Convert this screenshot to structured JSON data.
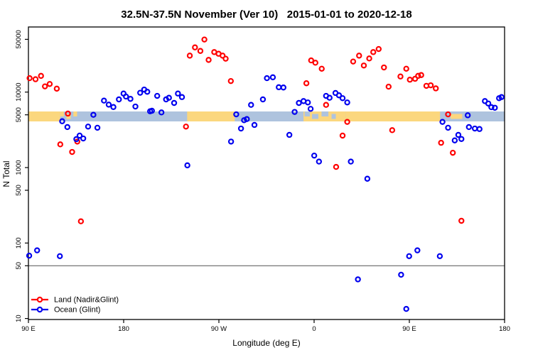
{
  "chart_data": {
    "type": "scatter",
    "title": "32.5N-37.5N November (Ver 10)   2015-01-01 to 2020-12-18",
    "xlabel": "Longitude (deg E)",
    "ylabel": "N Total",
    "x_axis": {
      "span_deg": 450,
      "tick_degs": [
        0,
        90,
        180,
        270,
        360,
        450
      ],
      "tick_labels": [
        "90 E",
        "180",
        "90 W",
        "0",
        "90 E",
        "180"
      ]
    },
    "y_axis": {
      "scale": "log",
      "ticks": [
        50000,
        10000,
        5000,
        1000,
        500,
        100,
        50,
        10
      ],
      "ylim": [
        9.7,
        72900
      ]
    },
    "reference_line": {
      "value": 50,
      "color": "#666666"
    },
    "coast_band": {
      "land_color": "#fbd77e",
      "ocean_color": "#aec3de",
      "center_value": 5000,
      "segments": [
        {
          "from": 0,
          "to": 450,
          "type": "ocean",
          "mode": "full"
        },
        {
          "from": 0,
          "to": 30,
          "type": "land",
          "mode": "full"
        },
        {
          "from": 30,
          "to": 33.5,
          "type": "land",
          "mode": "top"
        },
        {
          "from": 36,
          "to": 40,
          "type": "land",
          "mode": "mid"
        },
        {
          "from": 42.5,
          "to": 46,
          "type": "land",
          "mode": "top"
        },
        {
          "from": 150,
          "to": 195,
          "type": "land",
          "mode": "full"
        },
        {
          "from": 260,
          "to": 300,
          "type": "land",
          "mode": "full"
        },
        {
          "from": 261,
          "to": 266,
          "type": "ocean",
          "mode": "top"
        },
        {
          "from": 268,
          "to": 274,
          "type": "ocean",
          "mode": "mid"
        },
        {
          "from": 277,
          "to": 283.5,
          "type": "ocean",
          "mode": "top"
        },
        {
          "from": 286.5,
          "to": 290.5,
          "type": "ocean",
          "mode": "mid"
        },
        {
          "from": 300,
          "to": 389,
          "type": "land",
          "mode": "full"
        },
        {
          "from": 399,
          "to": 410,
          "type": "land",
          "mode": "mid"
        }
      ]
    },
    "series": [
      {
        "name": "Land (Nadir&Glint)",
        "color": "#ff0000",
        "points": [
          [
            1.1,
            15300
          ],
          [
            6.7,
            14800
          ],
          [
            11.9,
            16400
          ],
          [
            15.6,
            11900
          ],
          [
            20.1,
            12800
          ],
          [
            26.8,
            11100
          ],
          [
            37.3,
            5190
          ],
          [
            30.1,
            2030
          ],
          [
            46.2,
            2210
          ],
          [
            41.3,
            1610
          ],
          [
            49.6,
            194
          ],
          [
            148.9,
            3490
          ],
          [
            152.5,
            30400
          ],
          [
            157.4,
            39100
          ],
          [
            162.5,
            35100
          ],
          [
            166.3,
            49700
          ],
          [
            170.3,
            26700
          ],
          [
            175.6,
            33900
          ],
          [
            179.7,
            32200
          ],
          [
            183.5,
            30400
          ],
          [
            186.4,
            27700
          ],
          [
            191.3,
            14000
          ],
          [
            262.7,
            13100
          ],
          [
            267.2,
            26300
          ],
          [
            271.2,
            24500
          ],
          [
            277.2,
            20400
          ],
          [
            281.3,
            6770
          ],
          [
            290.8,
            1020
          ],
          [
            296.9,
            2650
          ],
          [
            301.3,
            4030
          ],
          [
            306.9,
            25400
          ],
          [
            312.5,
            30400
          ],
          [
            317,
            22500
          ],
          [
            322.1,
            27900
          ],
          [
            325.9,
            33900
          ],
          [
            331,
            37200
          ],
          [
            336,
            21200
          ],
          [
            340.4,
            11800
          ],
          [
            343.8,
            3130
          ],
          [
            351.6,
            16100
          ],
          [
            357.1,
            20400
          ],
          [
            360.5,
            14600
          ],
          [
            365.4,
            15000
          ],
          [
            368.3,
            16400
          ],
          [
            371.2,
            16800
          ],
          [
            376.1,
            12100
          ],
          [
            380.2,
            12300
          ],
          [
            385,
            11200
          ],
          [
            390,
            2130
          ],
          [
            396.6,
            5070
          ],
          [
            401.1,
            1570
          ],
          [
            409.2,
            197
          ]
        ]
      },
      {
        "name": "Ocean (Glint)",
        "color": "#0000ee",
        "points": [
          [
            0.7,
            68
          ],
          [
            8.2,
            80
          ],
          [
            29.7,
            67
          ],
          [
            31.9,
            4110
          ],
          [
            36.8,
            3440
          ],
          [
            45.3,
            2380
          ],
          [
            48.4,
            2650
          ],
          [
            51.8,
            2430
          ],
          [
            56.4,
            3490
          ],
          [
            61.4,
            5000
          ],
          [
            65.2,
            3370
          ],
          [
            71.4,
            7710
          ],
          [
            75.9,
            6820
          ],
          [
            80.3,
            6340
          ],
          [
            85.5,
            8000
          ],
          [
            89.9,
            9570
          ],
          [
            92.2,
            8730
          ],
          [
            96.4,
            8130
          ],
          [
            101.1,
            6440
          ],
          [
            105.6,
            9790
          ],
          [
            109.4,
            10800
          ],
          [
            112.3,
            10100
          ],
          [
            115,
            5570
          ],
          [
            116.7,
            5660
          ],
          [
            121.7,
            8910
          ],
          [
            125.7,
            5380
          ],
          [
            130.1,
            8000
          ],
          [
            132.8,
            8410
          ],
          [
            137.7,
            7180
          ],
          [
            141.3,
            9570
          ],
          [
            145.1,
            8590
          ],
          [
            150.2,
            1070
          ],
          [
            191.5,
            2210
          ],
          [
            196.4,
            5070
          ],
          [
            200.9,
            3290
          ],
          [
            203.8,
            4240
          ],
          [
            206.4,
            4390
          ],
          [
            210.4,
            6770
          ],
          [
            213.6,
            3670
          ],
          [
            221.6,
            8000
          ],
          [
            225.4,
            15300
          ],
          [
            231,
            15700
          ],
          [
            236.6,
            11600
          ],
          [
            241,
            11500
          ],
          [
            246.6,
            2710
          ],
          [
            251.6,
            5460
          ],
          [
            255.6,
            7180
          ],
          [
            260,
            7600
          ],
          [
            264.1,
            7290
          ],
          [
            266.7,
            6000
          ],
          [
            270.1,
            1440
          ],
          [
            274.6,
            1200
          ],
          [
            281.3,
            8910
          ],
          [
            284.6,
            8410
          ],
          [
            290.2,
            9730
          ],
          [
            293.5,
            9060
          ],
          [
            296.9,
            8300
          ],
          [
            301.3,
            7290
          ],
          [
            304.7,
            1200
          ],
          [
            311.4,
            33
          ],
          [
            320.3,
            711
          ],
          [
            352.2,
            38
          ],
          [
            357.1,
            13.4
          ],
          [
            359.8,
            67
          ],
          [
            367.6,
            80
          ],
          [
            388.8,
            67
          ],
          [
            391.3,
            4030
          ],
          [
            396.6,
            3370
          ],
          [
            402.9,
            2290
          ],
          [
            406.3,
            2710
          ],
          [
            409.2,
            2390
          ],
          [
            415.2,
            4930
          ],
          [
            416.3,
            3440
          ],
          [
            421.9,
            3290
          ],
          [
            426.3,
            3240
          ],
          [
            431.4,
            7600
          ],
          [
            434.6,
            7060
          ],
          [
            437.5,
            6310
          ],
          [
            440.8,
            6200
          ],
          [
            444.8,
            8300
          ],
          [
            447.1,
            8590
          ]
        ]
      }
    ],
    "legend_position": "bottom-left-inside",
    "marker": {
      "shape": "open-circle",
      "radius": 3.1,
      "stroke_width": 2.2
    }
  }
}
